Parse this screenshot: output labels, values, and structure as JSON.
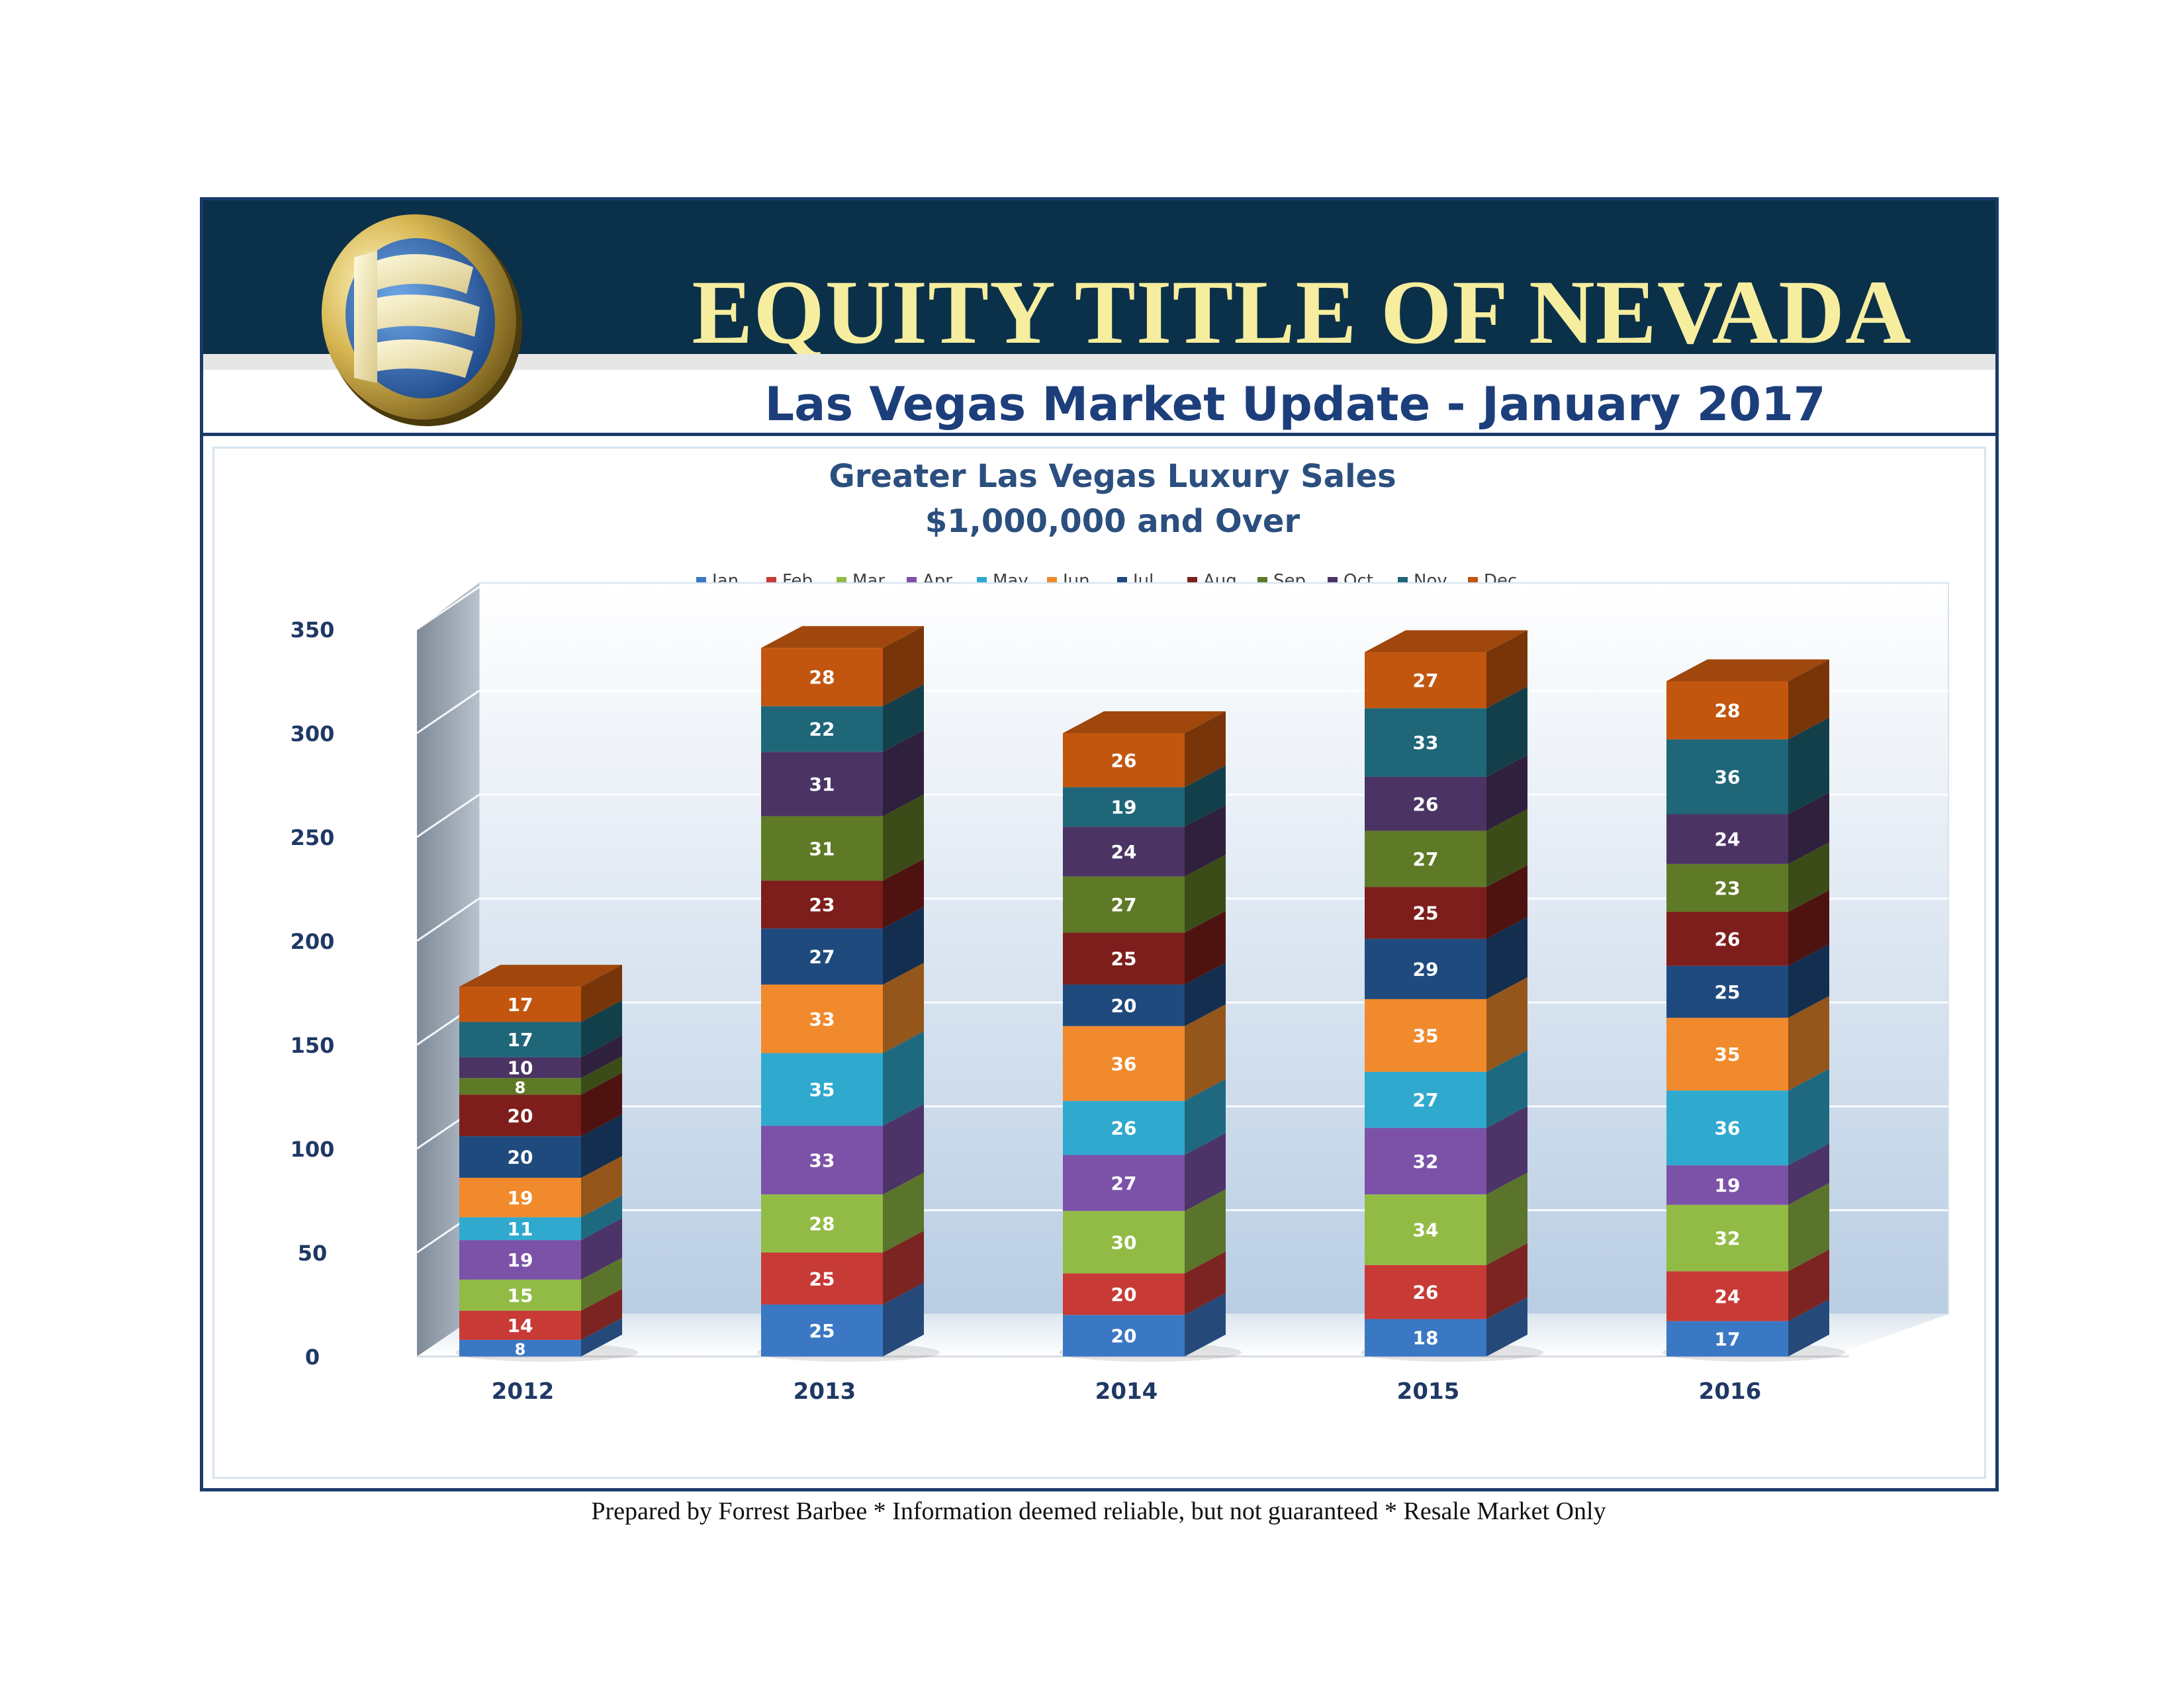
{
  "header": {
    "company": "EQUITY TITLE OF NEVADA",
    "subtitle": "Las Vegas Market Update - January 2017",
    "logo": "equity-title-logo"
  },
  "footer": {
    "text": "Prepared by Forrest Barbee * Information deemed reliable, but not guaranteed * Resale Market Only"
  },
  "colors": {
    "banner": "#0b3049",
    "company_text": "#f6ee9e",
    "subtitle_text": "#1c3f7c",
    "chart_title": "#2b4f7e",
    "axis_text": "#1f3864"
  },
  "chart_data": {
    "type": "bar",
    "stacked": true,
    "style": "3d",
    "title": "Greater Las Vegas Luxury Sales",
    "subtitle": "$1,000,000 and Over",
    "categories": [
      "2012",
      "2013",
      "2014",
      "2015",
      "2016"
    ],
    "ylim": [
      0,
      350
    ],
    "yticks": [
      0,
      50,
      100,
      150,
      200,
      250,
      300,
      350
    ],
    "grid": true,
    "legend": "top",
    "series": [
      {
        "name": "Jan",
        "color": "#3b78c4",
        "values": [
          8,
          25,
          20,
          18,
          17
        ]
      },
      {
        "name": "Feb",
        "color": "#c83a36",
        "values": [
          14,
          25,
          20,
          26,
          24
        ]
      },
      {
        "name": "Mar",
        "color": "#92bb45",
        "values": [
          15,
          28,
          30,
          34,
          32
        ]
      },
      {
        "name": "Apr",
        "color": "#7b52a8",
        "values": [
          19,
          33,
          27,
          32,
          19
        ]
      },
      {
        "name": "May",
        "color": "#30a9cf",
        "values": [
          11,
          35,
          26,
          27,
          36
        ]
      },
      {
        "name": "Jun",
        "color": "#f18a2c",
        "values": [
          19,
          33,
          36,
          35,
          35
        ]
      },
      {
        "name": "Jul",
        "color": "#1f4a7e",
        "values": [
          20,
          27,
          20,
          29,
          25
        ]
      },
      {
        "name": "Aug",
        "color": "#7e1e1c",
        "values": [
          20,
          23,
          25,
          25,
          26
        ]
      },
      {
        "name": "Sep",
        "color": "#5f7a26",
        "values": [
          8,
          31,
          27,
          27,
          23
        ]
      },
      {
        "name": "Oct",
        "color": "#4b3463",
        "values": [
          10,
          31,
          24,
          26,
          24
        ]
      },
      {
        "name": "Nov",
        "color": "#1f6678",
        "values": [
          17,
          22,
          19,
          33,
          36
        ]
      },
      {
        "name": "Dec",
        "color": "#c2560f",
        "values": [
          17,
          28,
          26,
          27,
          28
        ]
      }
    ]
  }
}
